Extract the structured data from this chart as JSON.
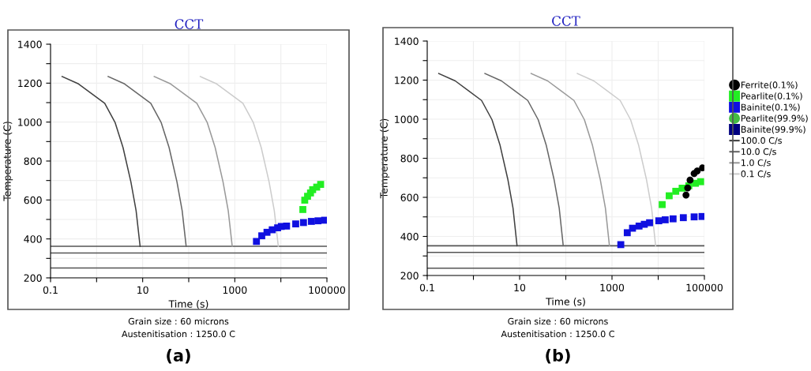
{
  "chart_data": [
    {
      "type": "line",
      "title": "CCT",
      "xlabel": "Time (s)",
      "ylabel": "Temperature (C)",
      "log": "x",
      "grid": true,
      "legend": false,
      "xlim": [
        0.1,
        100000
      ],
      "xticks": [
        0.1,
        {
          "value": 1,
          "label": null
        },
        10,
        {
          "value": 100,
          "label": null
        },
        1000,
        {
          "value": 10000,
          "label": null
        },
        100000
      ],
      "ylim": [
        200,
        1400
      ],
      "yticks": [
        200,
        {
          "value": 300,
          "label": null
        },
        400,
        {
          "value": 500,
          "label": null
        },
        600,
        {
          "value": 700,
          "label": null
        },
        800,
        {
          "value": 900,
          "label": null
        },
        1000,
        {
          "value": 1100,
          "label": null
        },
        1200,
        {
          "value": 1300,
          "label": null
        },
        1400
      ],
      "annotations": [
        "Grain size : 60 microns",
        "Austenitisation : 1250.0 C",
        "(a)"
      ],
      "ref_lines": [
        {
          "axis": "y",
          "value": 362,
          "color": "#555555"
        },
        {
          "axis": "y",
          "value": 328,
          "color": "#555555"
        },
        {
          "axis": "y",
          "value": 251,
          "color": "#555555"
        }
      ],
      "series": [
        {
          "color": "#404040",
          "x": [
            0.178,
            0.405,
            0.78,
            1.5,
            2.53,
            3.75,
            5.55,
            7.2,
            8.8
          ],
          "values": [
            1234,
            1196,
            1146,
            1096,
            997,
            869,
            693,
            545,
            362
          ]
        },
        {
          "color": "#666666",
          "x": [
            1.78,
            4.05,
            7.8,
            15,
            25.3,
            37.5,
            55.5,
            72,
            88
          ],
          "values": [
            1234,
            1196,
            1146,
            1096,
            997,
            869,
            693,
            545,
            362
          ]
        },
        {
          "color": "#999999",
          "x": [
            17.8,
            40.5,
            78,
            150,
            253,
            375,
            555,
            720,
            880
          ],
          "values": [
            1234,
            1196,
            1146,
            1096,
            997,
            869,
            693,
            545,
            362
          ]
        },
        {
          "color": "#cccccc",
          "x": [
            178,
            405,
            780,
            1500,
            2530,
            3750,
            5550,
            7200,
            8800
          ],
          "values": [
            1234,
            1196,
            1146,
            1096,
            997,
            869,
            693,
            545,
            362
          ]
        },
        {
          "type": "scatter",
          "marker": "square",
          "color": "#1010e0",
          "x": [
            2950,
            3850,
            5000,
            6500,
            8500,
            10200,
            13300,
            21000,
            31000,
            46000,
            64000,
            89000
          ],
          "values": [
            387,
            416,
            434,
            447,
            457,
            464,
            466,
            477,
            484,
            490,
            493,
            496
          ]
        },
        {
          "type": "scatter",
          "marker": "square",
          "color": "#22ee22",
          "x": [
            30000,
            33000,
            38000,
            44000,
            49000,
            60000,
            73000
          ],
          "values": [
            551,
            599,
            619,
            636,
            653,
            666,
            680
          ]
        }
      ]
    },
    {
      "type": "line",
      "title": "CCT",
      "xlabel": "Time (s)",
      "ylabel": "Temperature (C)",
      "log": "x",
      "grid": true,
      "legend": "right",
      "xlim": [
        0.1,
        100000
      ],
      "xticks": [
        0.1,
        {
          "value": 1,
          "label": null
        },
        10,
        {
          "value": 100,
          "label": null
        },
        1000,
        {
          "value": 10000,
          "label": null
        },
        100000
      ],
      "ylim": [
        200,
        1400
      ],
      "yticks": [
        200,
        {
          "value": 300,
          "label": null
        },
        400,
        {
          "value": 500,
          "label": null
        },
        600,
        {
          "value": 700,
          "label": null
        },
        800,
        {
          "value": 900,
          "label": null
        },
        1000,
        {
          "value": 1100,
          "label": null
        },
        1200,
        {
          "value": 1300,
          "label": null
        },
        1400
      ],
      "annotations": [
        "Grain size : 60 microns",
        "Austenitisation : 1250.0 C",
        "(b)"
      ],
      "ref_lines": [
        {
          "axis": "y",
          "value": 352,
          "color": "#555555"
        },
        {
          "axis": "y",
          "value": 318,
          "color": "#555555"
        },
        {
          "axis": "y",
          "value": 237,
          "color": "#555555"
        }
      ],
      "series": [
        {
          "type": "scatter",
          "marker": "circle",
          "name": "Ferrite(0.1%)",
          "color": "#000000",
          "x": [
            40000,
            43500,
            49000,
            60000,
            70000,
            91000
          ],
          "values": [
            612,
            648,
            688,
            722,
            735,
            751
          ]
        },
        {
          "type": "scatter",
          "marker": "square",
          "name": "Pearlite(0.1%)",
          "color": "#22ee22",
          "x": [
            12200,
            17300,
            24000,
            33000,
            46000,
            64000,
            83000
          ],
          "values": [
            563,
            608,
            631,
            647,
            659,
            672,
            680
          ]
        },
        {
          "type": "scatter",
          "marker": "square",
          "name": "Bainite(0.1%)",
          "color": "#1010e0",
          "x": [
            1550,
            2140,
            2780,
            3850,
            5000,
            6500,
            10300,
            14200,
            21000,
            35000,
            60000,
            89000
          ],
          "values": [
            358,
            419,
            442,
            453,
            462,
            470,
            480,
            485,
            490,
            496,
            500,
            502
          ]
        },
        {
          "type": "scatter",
          "marker": "circle",
          "name": "Pearlite(99.9%)",
          "color": "#44bb44"
        },
        {
          "type": "scatter",
          "marker": "square",
          "name": "Bainite(99.9%)",
          "color": "#000080"
        },
        {
          "name": "100.0 C/s",
          "color": "#404040",
          "x": [
            0.178,
            0.405,
            0.78,
            1.5,
            2.53,
            3.75,
            5.55,
            7.2,
            8.8
          ],
          "values": [
            1234,
            1196,
            1146,
            1096,
            997,
            869,
            693,
            545,
            352
          ]
        },
        {
          "name": "10.0 C/s",
          "color": "#666666",
          "x": [
            1.78,
            4.05,
            7.8,
            15,
            25.3,
            37.5,
            55.5,
            72,
            88
          ],
          "values": [
            1234,
            1196,
            1146,
            1096,
            997,
            869,
            693,
            545,
            352
          ]
        },
        {
          "name": "1.0 C/s",
          "color": "#999999",
          "x": [
            17.8,
            40.5,
            78,
            150,
            253,
            375,
            555,
            720,
            880
          ],
          "values": [
            1234,
            1196,
            1146,
            1096,
            997,
            869,
            693,
            545,
            352
          ]
        },
        {
          "name": "0.1 C/s",
          "color": "#cccccc",
          "x": [
            178,
            405,
            780,
            1500,
            2530,
            3750,
            5550,
            7200,
            8800
          ],
          "values": [
            1234,
            1196,
            1146,
            1096,
            997,
            869,
            693,
            545,
            352
          ]
        }
      ]
    }
  ]
}
